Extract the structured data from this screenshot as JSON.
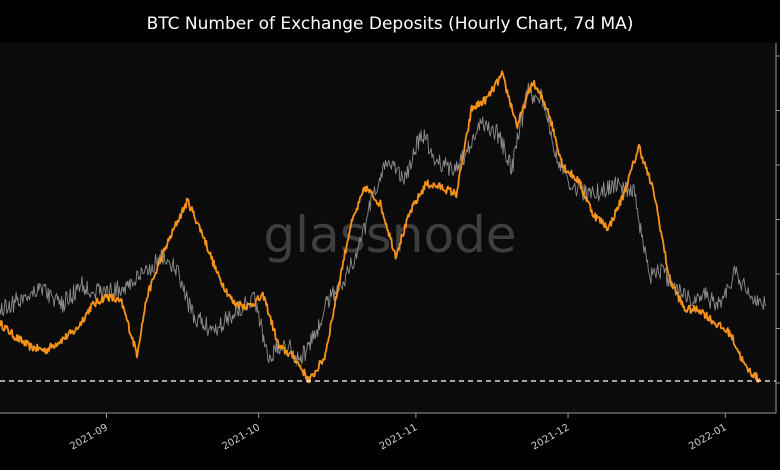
{
  "chart_data": {
    "type": "line",
    "title": "BTC Number of Exchange Deposits (Hourly Chart, 7d MA)",
    "watermark": "glassnode",
    "xlabel": "",
    "ylabel": "",
    "x_ticks": [
      "2021-09",
      "2021-10",
      "2021-11",
      "2021-12",
      "2022-01"
    ],
    "x_range": [
      "2021-08-11",
      "2022-01-11"
    ],
    "y_range": [
      0,
      1
    ],
    "grid": false,
    "background": "#0b0b0b",
    "frame_color": "#9a9a9a",
    "reference_line": {
      "value": 0.05,
      "style": "dashed",
      "color": "#ffffff"
    },
    "series": [
      {
        "color": "#f7931a",
        "points": [
          [
            "2021-08-11",
            0.22
          ],
          [
            "2021-08-14",
            0.18
          ],
          [
            "2021-08-17",
            0.15
          ],
          [
            "2021-08-20",
            0.14
          ],
          [
            "2021-08-23",
            0.17
          ],
          [
            "2021-08-26",
            0.2
          ],
          [
            "2021-08-29",
            0.27
          ],
          [
            "2021-09-01",
            0.3
          ],
          [
            "2021-09-04",
            0.28
          ],
          [
            "2021-09-07",
            0.13
          ],
          [
            "2021-09-09",
            0.3
          ],
          [
            "2021-09-12",
            0.42
          ],
          [
            "2021-09-15",
            0.52
          ],
          [
            "2021-09-17",
            0.58
          ],
          [
            "2021-09-20",
            0.48
          ],
          [
            "2021-09-23",
            0.36
          ],
          [
            "2021-09-26",
            0.28
          ],
          [
            "2021-09-29",
            0.27
          ],
          [
            "2021-10-02",
            0.3
          ],
          [
            "2021-10-05",
            0.15
          ],
          [
            "2021-10-08",
            0.12
          ],
          [
            "2021-10-11",
            0.05
          ],
          [
            "2021-10-14",
            0.12
          ],
          [
            "2021-10-17",
            0.35
          ],
          [
            "2021-10-19",
            0.5
          ],
          [
            "2021-10-22",
            0.62
          ],
          [
            "2021-10-25",
            0.57
          ],
          [
            "2021-10-28",
            0.42
          ],
          [
            "2021-10-31",
            0.55
          ],
          [
            "2021-11-03",
            0.63
          ],
          [
            "2021-11-06",
            0.62
          ],
          [
            "2021-11-09",
            0.6
          ],
          [
            "2021-11-12",
            0.85
          ],
          [
            "2021-11-15",
            0.88
          ],
          [
            "2021-11-18",
            0.95
          ],
          [
            "2021-11-21",
            0.8
          ],
          [
            "2021-11-24",
            0.93
          ],
          [
            "2021-11-27",
            0.85
          ],
          [
            "2021-11-30",
            0.68
          ],
          [
            "2021-12-03",
            0.64
          ],
          [
            "2021-12-06",
            0.54
          ],
          [
            "2021-12-09",
            0.5
          ],
          [
            "2021-12-12",
            0.6
          ],
          [
            "2021-12-15",
            0.74
          ],
          [
            "2021-12-18",
            0.6
          ],
          [
            "2021-12-21",
            0.35
          ],
          [
            "2021-12-24",
            0.26
          ],
          [
            "2021-12-27",
            0.26
          ],
          [
            "2021-12-30",
            0.22
          ],
          [
            "2022-01-02",
            0.19
          ],
          [
            "2022-01-05",
            0.09
          ],
          [
            "2022-01-08",
            0.05
          ]
        ]
      },
      {
        "color": "#8c8c8c",
        "points": [
          [
            "2021-08-11",
            0.26
          ],
          [
            "2021-08-15",
            0.29
          ],
          [
            "2021-08-19",
            0.33
          ],
          [
            "2021-08-23",
            0.27
          ],
          [
            "2021-08-27",
            0.33
          ],
          [
            "2021-08-31",
            0.31
          ],
          [
            "2021-09-04",
            0.32
          ],
          [
            "2021-09-08",
            0.36
          ],
          [
            "2021-09-12",
            0.42
          ],
          [
            "2021-09-15",
            0.37
          ],
          [
            "2021-09-18",
            0.24
          ],
          [
            "2021-09-22",
            0.2
          ],
          [
            "2021-09-26",
            0.25
          ],
          [
            "2021-09-30",
            0.3
          ],
          [
            "2021-10-03",
            0.12
          ],
          [
            "2021-10-06",
            0.17
          ],
          [
            "2021-10-09",
            0.11
          ],
          [
            "2021-10-12",
            0.18
          ],
          [
            "2021-10-15",
            0.3
          ],
          [
            "2021-10-18",
            0.35
          ],
          [
            "2021-10-21",
            0.45
          ],
          [
            "2021-10-24",
            0.62
          ],
          [
            "2021-10-27",
            0.7
          ],
          [
            "2021-10-30",
            0.64
          ],
          [
            "2021-11-02",
            0.78
          ],
          [
            "2021-11-05",
            0.7
          ],
          [
            "2021-11-08",
            0.67
          ],
          [
            "2021-11-11",
            0.72
          ],
          [
            "2021-11-14",
            0.81
          ],
          [
            "2021-11-17",
            0.78
          ],
          [
            "2021-11-20",
            0.68
          ],
          [
            "2021-11-23",
            0.9
          ],
          [
            "2021-11-26",
            0.88
          ],
          [
            "2021-11-29",
            0.7
          ],
          [
            "2021-12-02",
            0.62
          ],
          [
            "2021-12-05",
            0.6
          ],
          [
            "2021-12-08",
            0.61
          ],
          [
            "2021-12-11",
            0.63
          ],
          [
            "2021-12-14",
            0.6
          ],
          [
            "2021-12-17",
            0.35
          ],
          [
            "2021-12-19",
            0.38
          ],
          [
            "2021-12-22",
            0.33
          ],
          [
            "2021-12-25",
            0.29
          ],
          [
            "2021-12-28",
            0.3
          ],
          [
            "2021-12-31",
            0.27
          ],
          [
            "2022-01-03",
            0.37
          ],
          [
            "2022-01-06",
            0.3
          ],
          [
            "2022-01-09",
            0.27
          ]
        ]
      }
    ]
  }
}
